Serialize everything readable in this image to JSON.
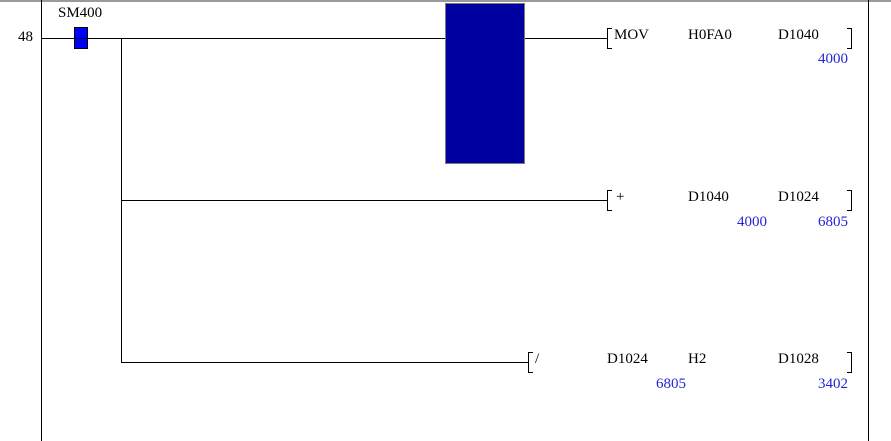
{
  "step_number": "48",
  "contact": {
    "device": "SM400",
    "color": "#0000ff"
  },
  "cursor_color": "#0000a0",
  "instructions": [
    {
      "op": "MOV",
      "src1": "H0FA0",
      "dst": "D1040",
      "dst_value": "4000"
    },
    {
      "op": "+",
      "src1": "D1040",
      "src1_value": "4000",
      "dst": "D1024",
      "dst_value": "6805"
    },
    {
      "op": "/",
      "src1": "D1024",
      "src1_value": "6805",
      "src2": "H2",
      "dst": "D1028",
      "dst_value": "3402"
    }
  ]
}
